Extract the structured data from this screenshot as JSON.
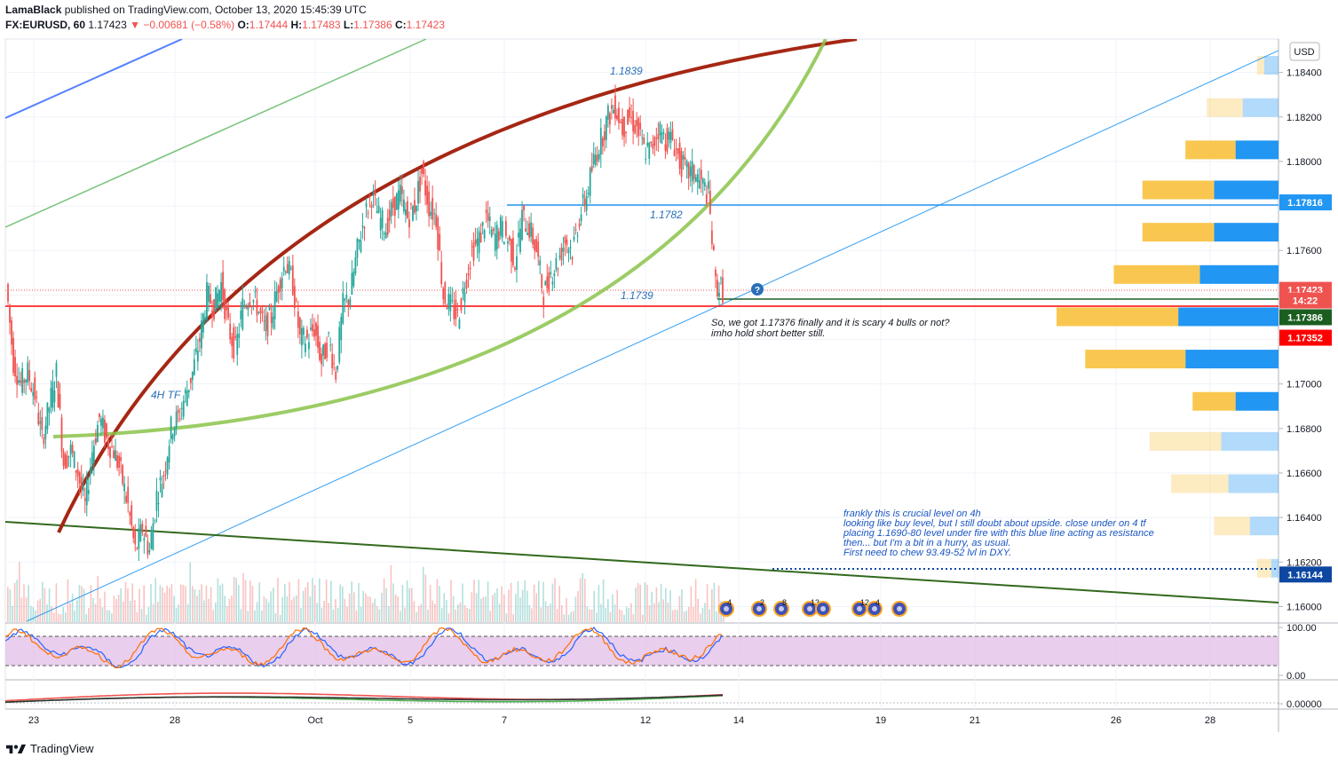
{
  "header": {
    "publisher": "LamaBlack",
    "published_text": "published on TradingView.com, October 13, 2020 15:45:39 UTC",
    "symbol": "FX:EURUSD, 60",
    "last": "1.17423",
    "change": "−0.00681 (−0.58%)",
    "o_label": "O:",
    "o": "1.17444",
    "h_label": "H:",
    "h": "1.17483",
    "l_label": "L:",
    "l": "1.17386",
    "c_label": "C:",
    "c": "1.17423"
  },
  "footer": {
    "brand": "TradingView"
  },
  "price_axis": {
    "currency": "USD",
    "ticks": [
      "1.18400",
      "1.18200",
      "1.18000",
      "1.17800",
      "1.17600",
      "1.17400",
      "1.17200",
      "1.17000",
      "1.16800",
      "1.16600",
      "1.16400",
      "1.16200",
      "1.16000"
    ],
    "labels": [
      {
        "text": "1.17816",
        "value": 1.17816,
        "color": "#2196f3"
      },
      {
        "text": "1.17423",
        "value": 1.17423,
        "color": "#ef5350"
      },
      {
        "text": "14:22",
        "value": 1.17375,
        "color": "#ef5350"
      },
      {
        "text": "1.17386",
        "value": 1.173,
        "color": "#1b5e20"
      },
      {
        "text": "1.17352",
        "value": 1.17208,
        "color": "#ff0000"
      },
      {
        "text": "1.16144",
        "value": 1.16144,
        "color": "#0d47a1"
      }
    ]
  },
  "rsi_axis": {
    "ticks": [
      "100.00",
      "0.00"
    ]
  },
  "macd_axis": {
    "ticks": [
      "0.00000"
    ]
  },
  "time_axis": {
    "ticks": [
      "23",
      "28",
      "Oct",
      "5",
      "7",
      "12",
      "14",
      "19",
      "21",
      "26",
      "28"
    ]
  },
  "annotations": {
    "level_1839": "1.1839",
    "level_1782": "1.1782",
    "level_1739": "1.1739",
    "tf_label": "4H TF",
    "note_1": [
      "So, we got 1.17376 finally and it is scary 4 bulls or not?",
      "imho hold short better still."
    ],
    "note_2": [
      "frankly this is crucial level on 4h",
      "looking like buy level, but I still doubt about upside. close under on 4 tf",
      "placing 1.1690-80 level under fire with this blue line acting as resistance",
      "then... but I'm a bit in a hurry, as usual.",
      "First need to chew 93.49-52 lvl in DXY."
    ]
  },
  "events": [
    "4",
    "2",
    "8",
    "13",
    "12",
    "4"
  ],
  "colors": {
    "bull": "#26a69a",
    "bear": "#ef5350",
    "arc": "#a52714",
    "green_arc": "#8bc34a",
    "trend_blue": "#2196f3",
    "support_dark": "#1b5e20",
    "vp_up": "#2196f3",
    "vp_down": "#f9c74f"
  },
  "chart_data": {
    "type": "candlestick",
    "symbol": "EURUSD",
    "interval": "60",
    "price_range": [
      1.1593,
      1.1855
    ],
    "date_ticks": [
      "23",
      "28",
      "Oct",
      "5",
      "7",
      "12",
      "14",
      "19",
      "21",
      "26",
      "28"
    ],
    "closes": [
      1.1745,
      1.171,
      1.17,
      1.1705,
      1.1695,
      1.1675,
      1.169,
      1.1705,
      1.1665,
      1.167,
      1.166,
      1.1645,
      1.167,
      1.1685,
      1.1675,
      1.167,
      1.166,
      1.1645,
      1.1625,
      1.1635,
      1.1625,
      1.165,
      1.166,
      1.168,
      1.1685,
      1.1695,
      1.1705,
      1.172,
      1.174,
      1.1735,
      1.1745,
      1.1725,
      1.1715,
      1.1735,
      1.174,
      1.1735,
      1.1725,
      1.173,
      1.1745,
      1.1755,
      1.1745,
      1.172,
      1.172,
      1.1725,
      1.171,
      1.172,
      1.1705,
      1.1735,
      1.174,
      1.176,
      1.1775,
      1.1785,
      1.1775,
      1.177,
      1.178,
      1.1785,
      1.1775,
      1.178,
      1.1795,
      1.178,
      1.1775,
      1.174,
      1.1735,
      1.173,
      1.1745,
      1.176,
      1.1765,
      1.1775,
      1.1765,
      1.177,
      1.1765,
      1.1755,
      1.1775,
      1.177,
      1.176,
      1.174,
      1.175,
      1.1755,
      1.1765,
      1.176,
      1.1775,
      1.1785,
      1.18,
      1.181,
      1.182,
      1.1825,
      1.1815,
      1.182,
      1.1815,
      1.1805,
      1.1805,
      1.1815,
      1.181,
      1.181,
      1.18,
      1.1795,
      1.1795,
      1.179,
      1.1785,
      1.1745,
      1.1742
    ],
    "rsi": {
      "name": "Stoch RSI",
      "range": [
        0,
        100
      ]
    },
    "volume_profile": [
      {
        "price": 1.1843,
        "up": 0.02,
        "down": 0.01
      },
      {
        "price": 1.1824,
        "up": 0.05,
        "down": 0.05
      },
      {
        "price": 1.1805,
        "up": 0.06,
        "down": 0.07
      },
      {
        "price": 1.1787,
        "up": 0.09,
        "down": 0.1
      },
      {
        "price": 1.1768,
        "up": 0.09,
        "down": 0.1
      },
      {
        "price": 1.1749,
        "up": 0.11,
        "down": 0.12
      },
      {
        "price": 1.173,
        "up": 0.14,
        "down": 0.17
      },
      {
        "price": 1.1711,
        "up": 0.13,
        "down": 0.14
      },
      {
        "price": 1.1692,
        "up": 0.06,
        "down": 0.06
      },
      {
        "price": 1.1674,
        "up": 0.08,
        "down": 0.1
      },
      {
        "price": 1.1655,
        "up": 0.07,
        "down": 0.08
      },
      {
        "price": 1.1636,
        "up": 0.04,
        "down": 0.05
      },
      {
        "price": 1.1617,
        "up": 0.01,
        "down": 0.02
      }
    ]
  }
}
